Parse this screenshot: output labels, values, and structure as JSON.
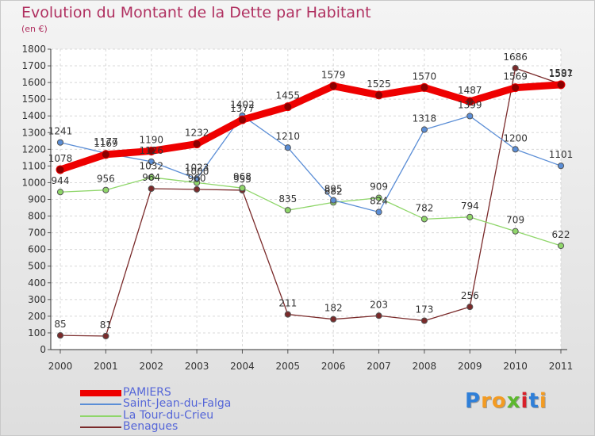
{
  "header": {
    "title": "Evolution du Montant de la Dette par Habitant",
    "subtitle": "(en €)"
  },
  "chart_data": {
    "type": "line",
    "title": "Evolution du Montant de la Dette par Habitant",
    "subtitle": "(en €)",
    "xlabel": "",
    "ylabel": "",
    "x": [
      "2000",
      "2001",
      "2002",
      "2003",
      "2004",
      "2005",
      "2006",
      "2007",
      "2008",
      "2009",
      "2010",
      "2011"
    ],
    "ylim": [
      0,
      1800
    ],
    "yticks": [
      0,
      100,
      200,
      300,
      400,
      500,
      600,
      700,
      800,
      900,
      1000,
      1100,
      1200,
      1300,
      1400,
      1500,
      1600,
      1700,
      1800
    ],
    "grid": true,
    "legend_position": "bottom-left",
    "series": [
      {
        "name": "PAMIERS",
        "color": "#ee0000",
        "values": [
          1078,
          1169,
          1190,
          1232,
          1377,
          1455,
          1579,
          1525,
          1570,
          1487,
          1569,
          1587
        ]
      },
      {
        "name": "Saint-Jean-du-Falga",
        "color": "#5b8ed6",
        "values": [
          1241,
          1177,
          1126,
          1023,
          1402,
          1210,
          895,
          824,
          1318,
          1399,
          1200,
          1101
        ]
      },
      {
        "name": "La Tour-du-Crieu",
        "color": "#8fd66a",
        "values": [
          944,
          956,
          1032,
          1000,
          968,
          835,
          882,
          909,
          782,
          794,
          709,
          622
        ]
      },
      {
        "name": "Benagues",
        "color": "#7a2a2a",
        "values": [
          85,
          81,
          964,
          960,
          955,
          211,
          182,
          203,
          173,
          256,
          1686,
          1591
        ]
      }
    ]
  },
  "logo": {
    "letters": [
      "P",
      "r",
      "o",
      "x",
      "i",
      "t",
      "i"
    ],
    "colors": [
      "#2f7fd8",
      "#f39b22",
      "#f39b22",
      "#5cb82e",
      "#d8202a",
      "#2f7fd8",
      "#f39b22"
    ]
  }
}
